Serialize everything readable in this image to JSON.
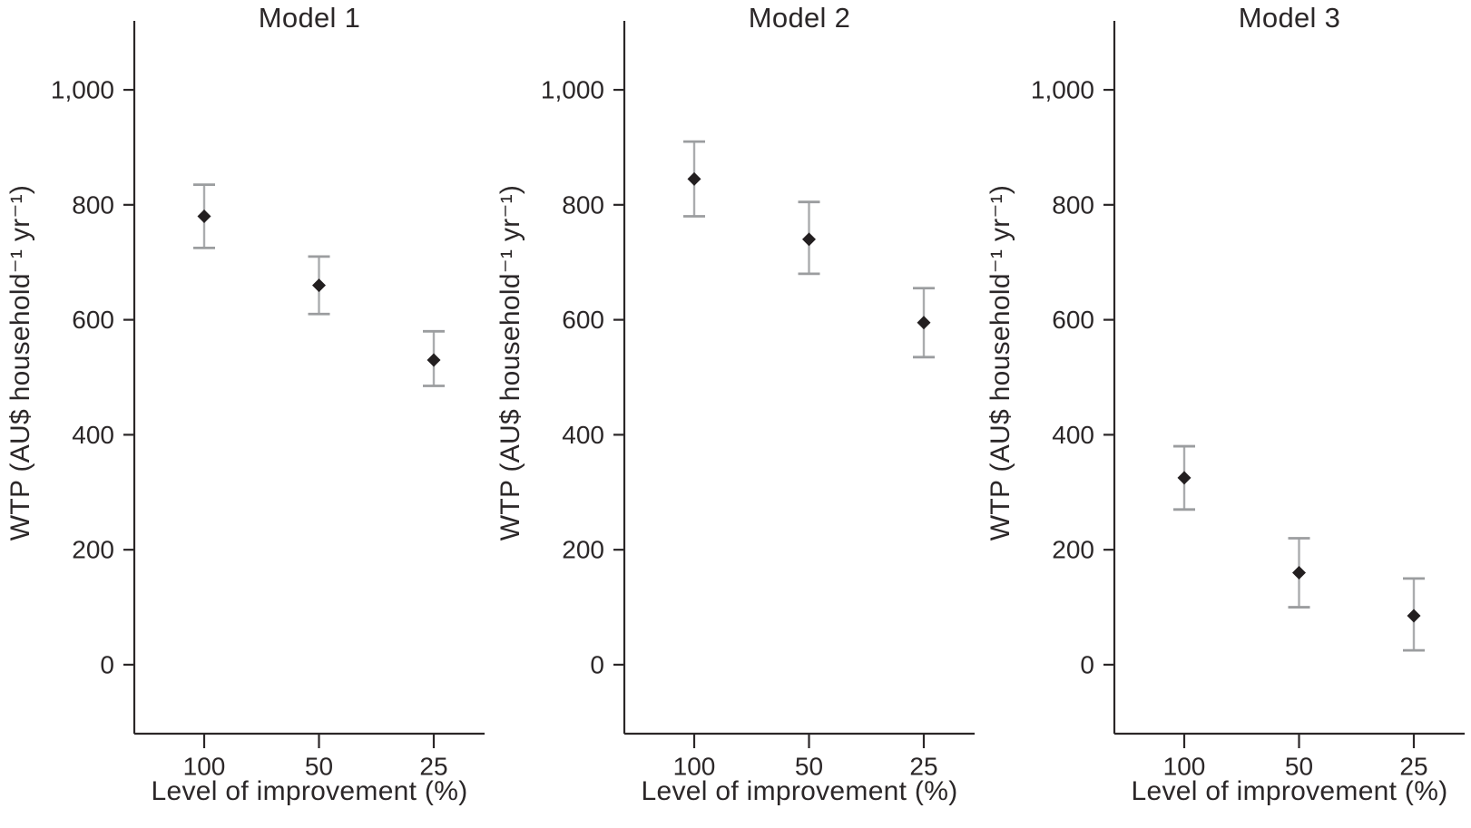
{
  "figure": {
    "background": "#ffffff"
  },
  "colors": {
    "marker": "#231f20",
    "error_bar": "#aaacae",
    "error_cap": "#9b9d9f",
    "axis": "#2b2728",
    "text": "#2b2728"
  },
  "chart_data": [
    {
      "type": "scatter",
      "title": "Model 1",
      "xlabel": "Level of improvement (%)",
      "ylabel": "WTP (AU$ household⁻¹ yr⁻¹)",
      "categories": [
        "100",
        "50",
        "25"
      ],
      "values": [
        780,
        660,
        530
      ],
      "error_low": [
        725,
        610,
        485
      ],
      "error_high": [
        835,
        710,
        580
      ],
      "ylim": [
        -120,
        1120
      ],
      "ytick_values": [
        0,
        200,
        400,
        600,
        800,
        1000
      ],
      "ytick_labels": [
        "0",
        "200",
        "400",
        "600",
        "800",
        "1,000"
      ],
      "grid": false,
      "legend": "none",
      "marker": "diamond"
    },
    {
      "type": "scatter",
      "title": "Model 2",
      "xlabel": "Level of improvement (%)",
      "ylabel": "WTP (AU$ household⁻¹ yr⁻¹)",
      "categories": [
        "100",
        "50",
        "25"
      ],
      "values": [
        845,
        740,
        595
      ],
      "error_low": [
        780,
        680,
        535
      ],
      "error_high": [
        910,
        805,
        655
      ],
      "ylim": [
        -120,
        1120
      ],
      "ytick_values": [
        0,
        200,
        400,
        600,
        800,
        1000
      ],
      "ytick_labels": [
        "0",
        "200",
        "400",
        "600",
        "800",
        "1,000"
      ],
      "grid": false,
      "legend": "none",
      "marker": "diamond"
    },
    {
      "type": "scatter",
      "title": "Model 3",
      "xlabel": "Level of improvement (%)",
      "ylabel": "WTP (AU$ household⁻¹ yr⁻¹)",
      "categories": [
        "100",
        "50",
        "25"
      ],
      "values": [
        325,
        160,
        85
      ],
      "error_low": [
        270,
        100,
        25
      ],
      "error_high": [
        380,
        220,
        150
      ],
      "ylim": [
        -120,
        1120
      ],
      "ytick_values": [
        0,
        200,
        400,
        600,
        800,
        1000
      ],
      "ytick_labels": [
        "0",
        "200",
        "400",
        "600",
        "800",
        "1,000"
      ],
      "grid": false,
      "legend": "none",
      "marker": "diamond"
    }
  ]
}
